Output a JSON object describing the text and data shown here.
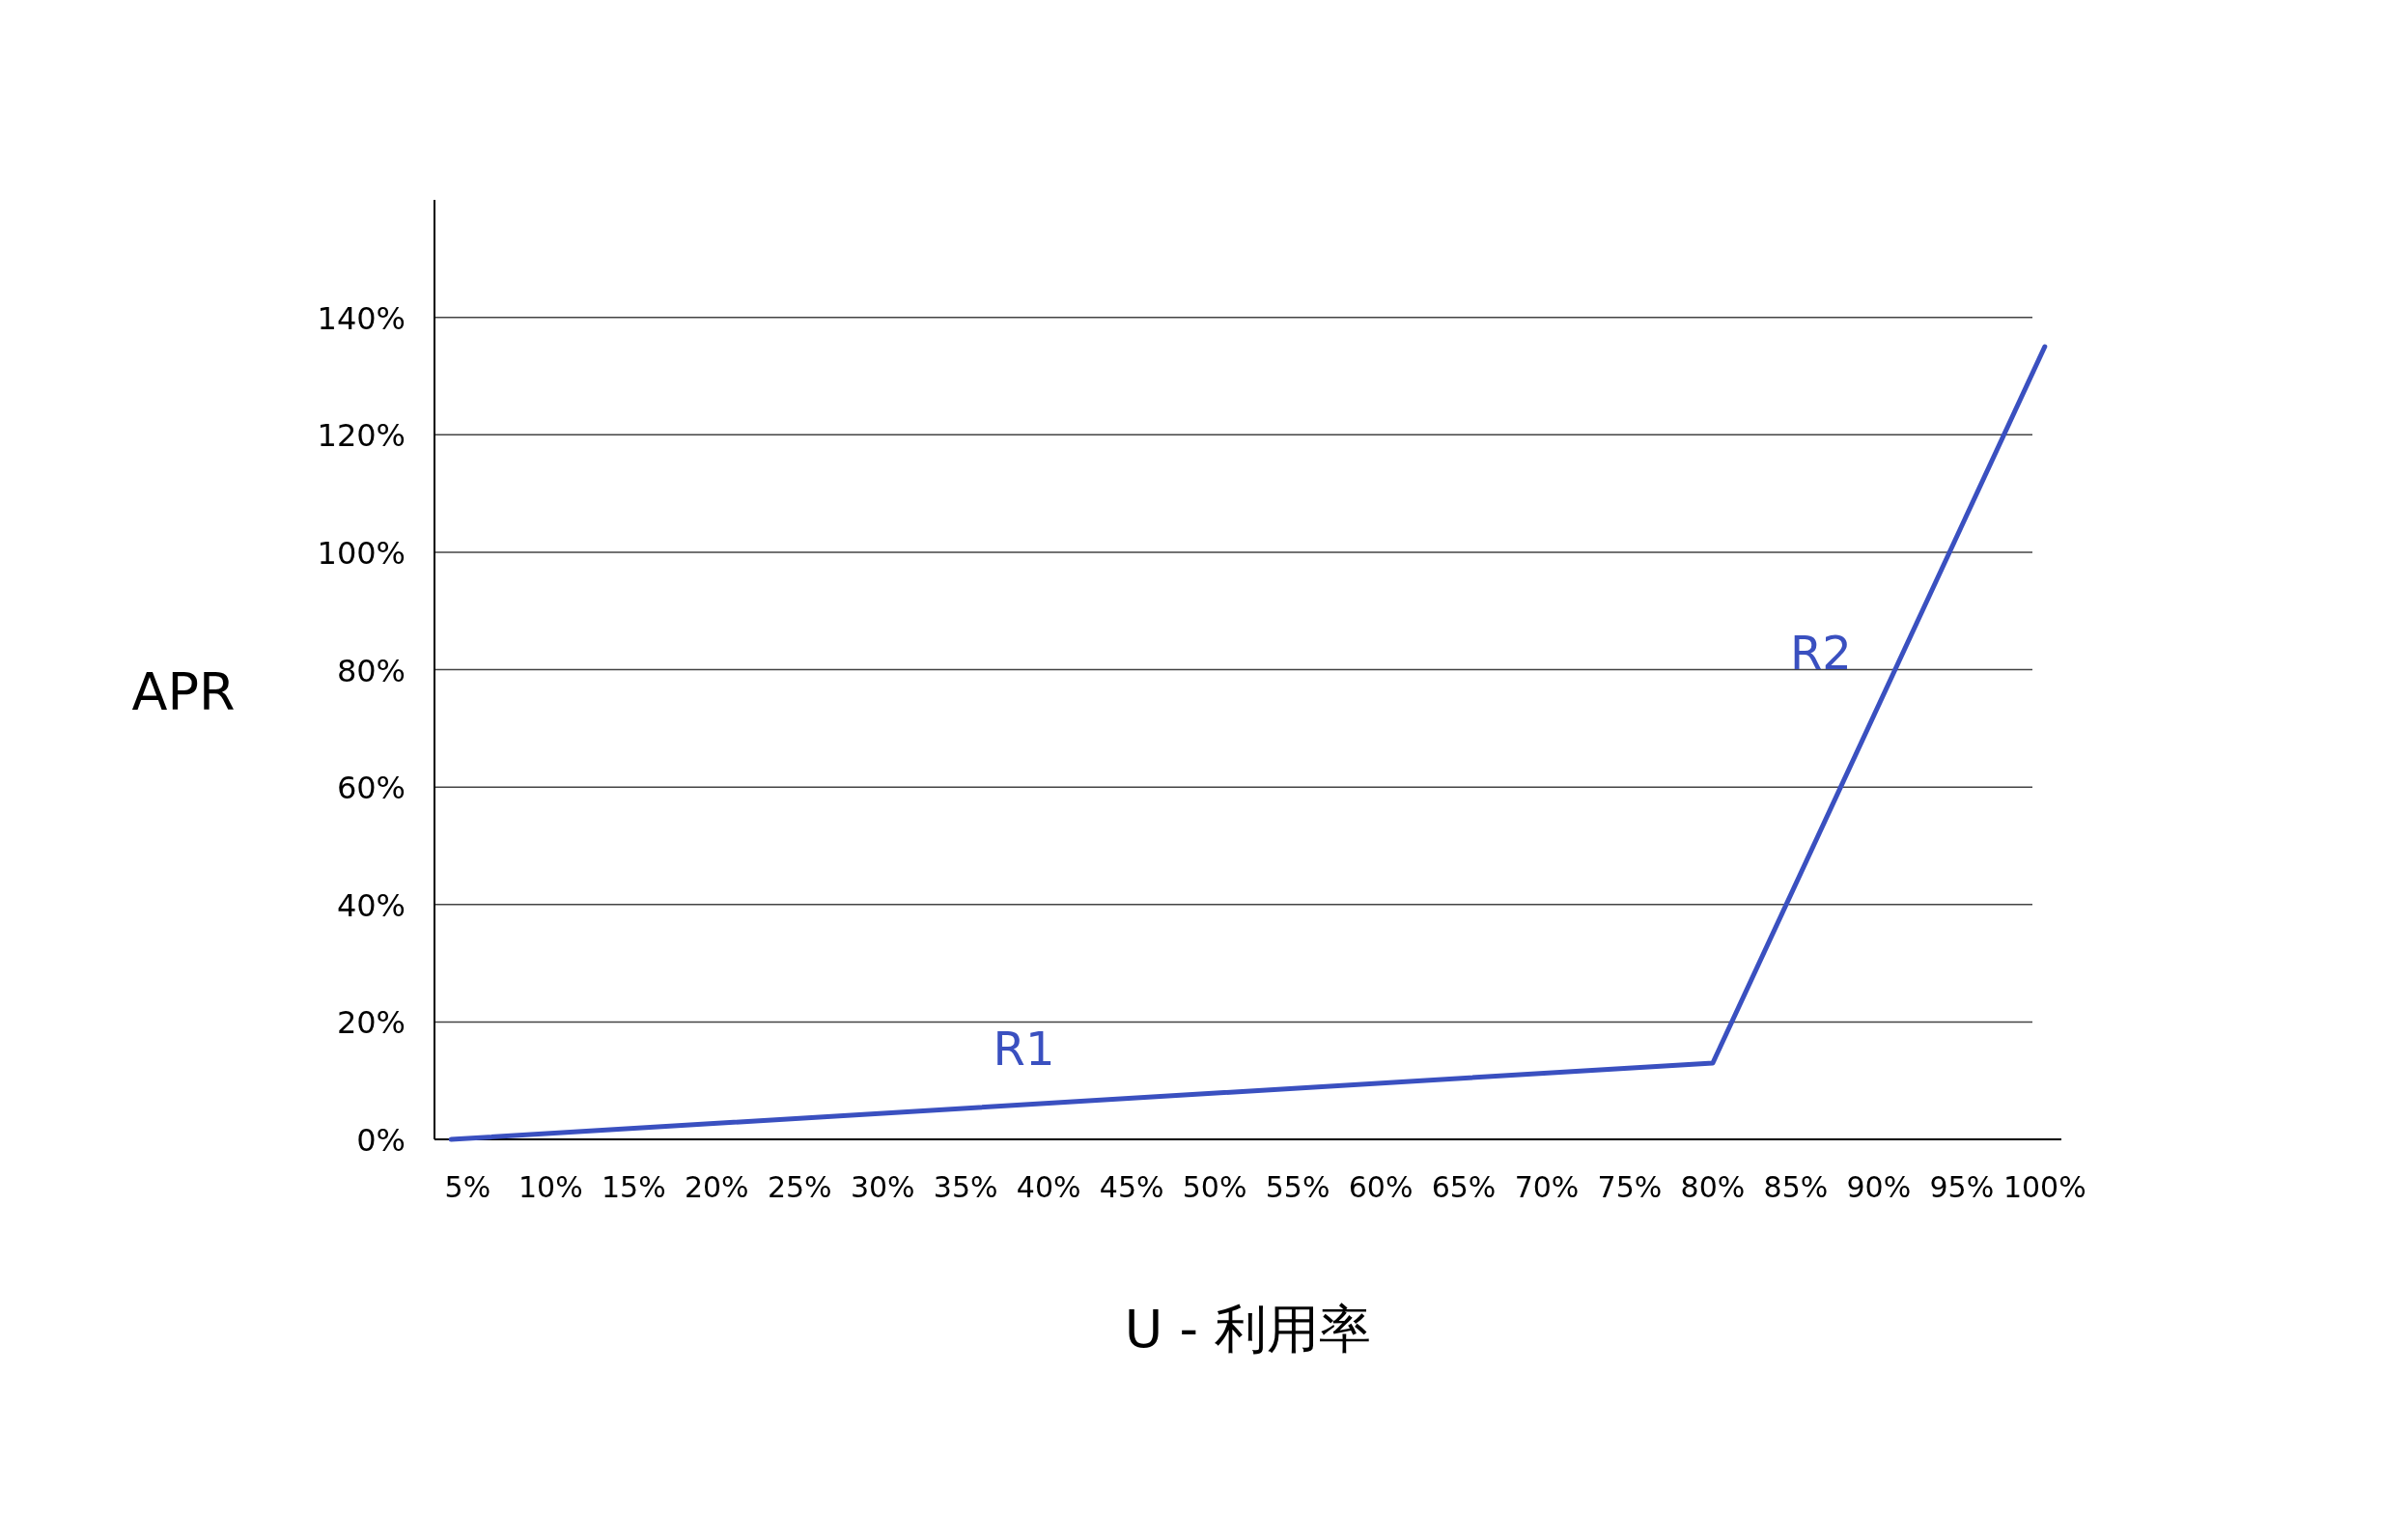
{
  "chart_data": {
    "type": "line",
    "xlabel": "U - 利用率",
    "ylabel": "APR",
    "x": [
      4,
      80,
      100
    ],
    "series": [
      {
        "color": "#3a50c0",
        "values": [
          0,
          13,
          135
        ]
      }
    ],
    "xlim": [
      3,
      101
    ],
    "ylim": [
      0,
      160
    ],
    "xticks": [
      {
        "value": 5,
        "label": "5%"
      },
      {
        "value": 10,
        "label": "10%"
      },
      {
        "value": 15,
        "label": "15%"
      },
      {
        "value": 20,
        "label": "20%"
      },
      {
        "value": 25,
        "label": "25%"
      },
      {
        "value": 30,
        "label": "30%"
      },
      {
        "value": 35,
        "label": "35%"
      },
      {
        "value": 40,
        "label": "40%"
      },
      {
        "value": 45,
        "label": "45%"
      },
      {
        "value": 50,
        "label": "50%"
      },
      {
        "value": 55,
        "label": "55%"
      },
      {
        "value": 60,
        "label": "60%"
      },
      {
        "value": 65,
        "label": "65%"
      },
      {
        "value": 70,
        "label": "70%"
      },
      {
        "value": 75,
        "label": "75%"
      },
      {
        "value": 80,
        "label": "80%"
      },
      {
        "value": 85,
        "label": "85%"
      },
      {
        "value": 90,
        "label": "90%"
      },
      {
        "value": 95,
        "label": "95%"
      },
      {
        "value": 100,
        "label": "100%"
      }
    ],
    "yticks": [
      {
        "value": 0,
        "label": "0%"
      },
      {
        "value": 20,
        "label": "20%"
      },
      {
        "value": 40,
        "label": "40%"
      },
      {
        "value": 60,
        "label": "60%"
      },
      {
        "value": 80,
        "label": "80%"
      },
      {
        "value": 100,
        "label": "100%"
      },
      {
        "value": 120,
        "label": "120%"
      },
      {
        "value": 140,
        "label": "140%"
      }
    ],
    "grid": "y",
    "marker": "none",
    "line_style": "solid",
    "annotations": [
      "R1",
      "R2"
    ]
  }
}
